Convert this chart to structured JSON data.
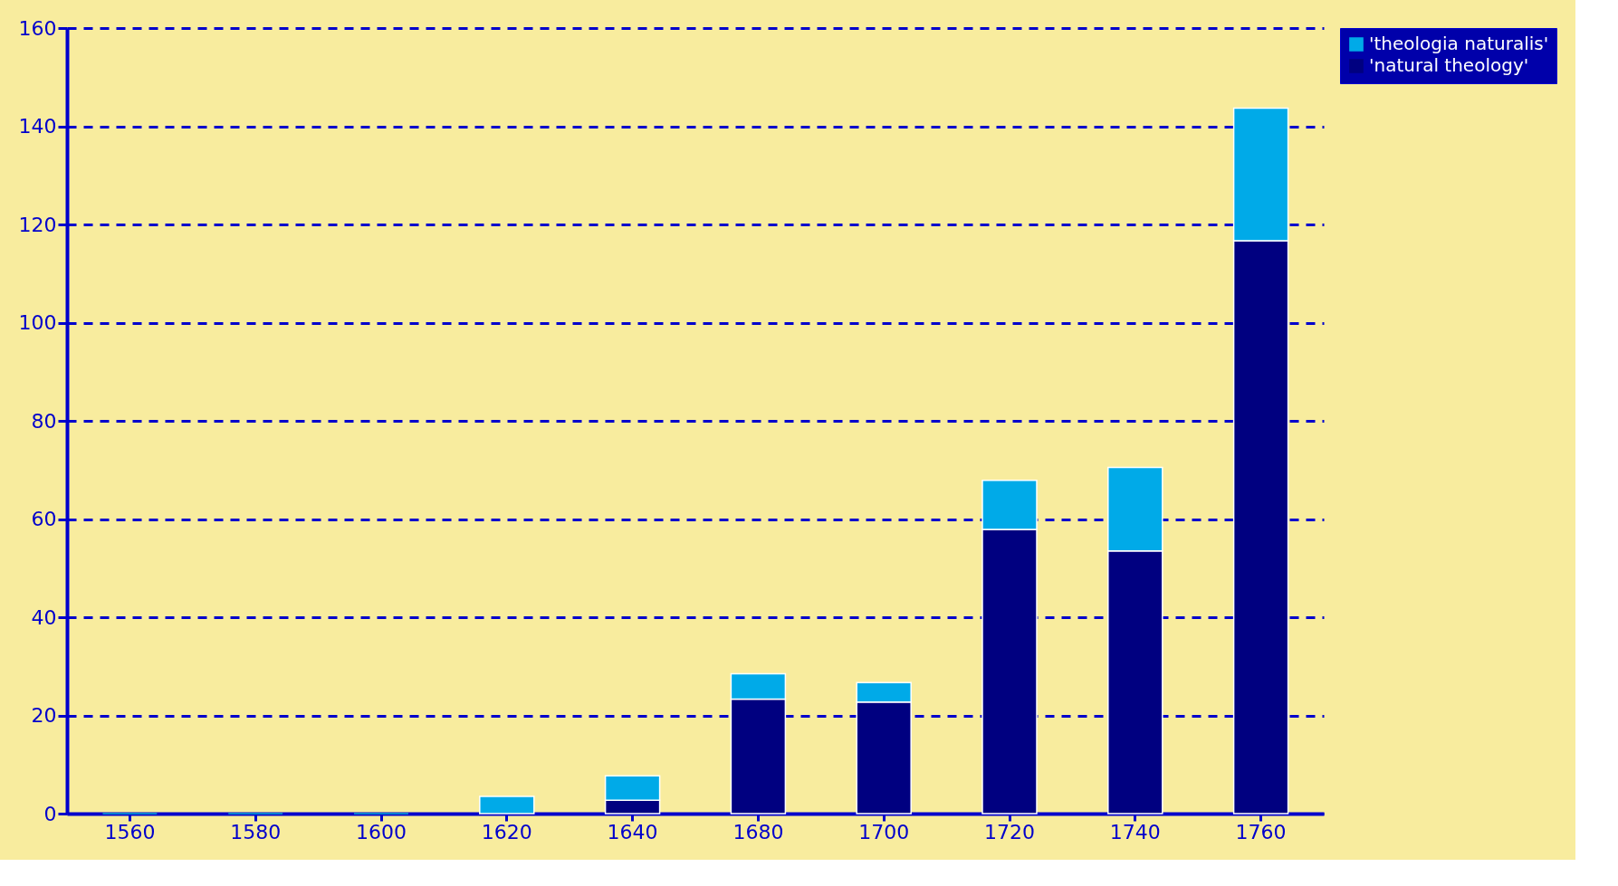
{
  "chart_data": {
    "type": "bar",
    "stacked": true,
    "categories": [
      "1560",
      "1580",
      "1600",
      "1620",
      "1640",
      "1680",
      "1700",
      "1720",
      "1740",
      "1760"
    ],
    "series": [
      {
        "name": "'natural theology'",
        "color": "#000080",
        "values": [
          0,
          0,
          0,
          0,
          2.7,
          23.3,
          22.7,
          57.9,
          53.5,
          116.7
        ]
      },
      {
        "name": "'theologia naturalis'",
        "color": "#00aae8",
        "values": [
          0,
          0,
          0,
          3.5,
          5,
          5.2,
          4,
          10,
          17,
          27
        ]
      }
    ],
    "ylim": [
      0,
      160
    ],
    "yticks": [
      0,
      20,
      40,
      60,
      80,
      100,
      120,
      140,
      160
    ],
    "grid": "y",
    "legend": "right"
  }
}
